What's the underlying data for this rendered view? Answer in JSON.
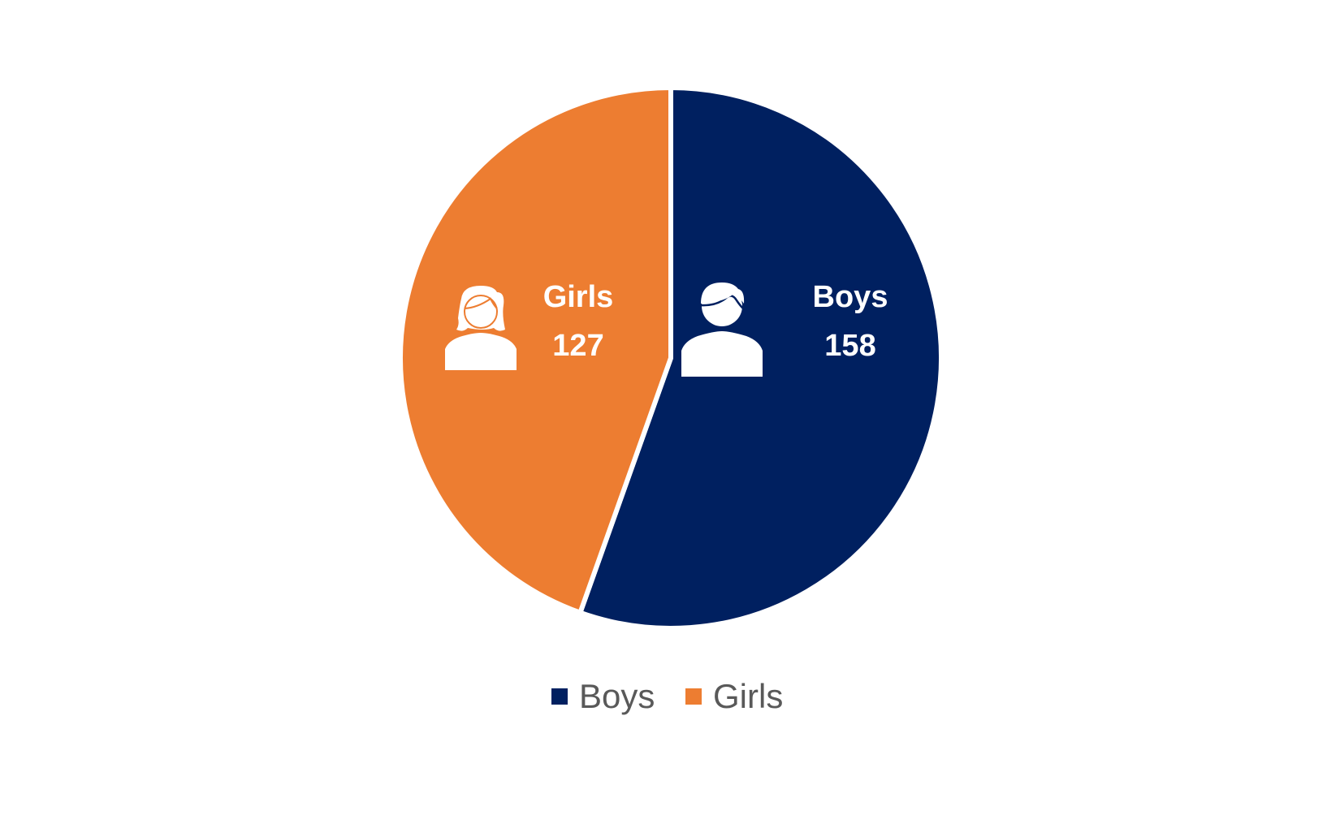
{
  "chart_data": {
    "type": "pie",
    "categories": [
      "Boys",
      "Girls"
    ],
    "values": [
      158,
      127
    ],
    "colors": [
      "#002060",
      "#ED7D31"
    ],
    "start_angle_deg": 0,
    "direction": "clockwise",
    "slice_border_color": "#ffffff",
    "data_labels": [
      {
        "name": "Boys",
        "value": "158",
        "icon": "boy-person-icon"
      },
      {
        "name": "Girls",
        "value": "127",
        "icon": "girl-person-icon"
      }
    ],
    "legend": {
      "position": "bottom",
      "entries": [
        "Boys",
        "Girls"
      ]
    }
  }
}
